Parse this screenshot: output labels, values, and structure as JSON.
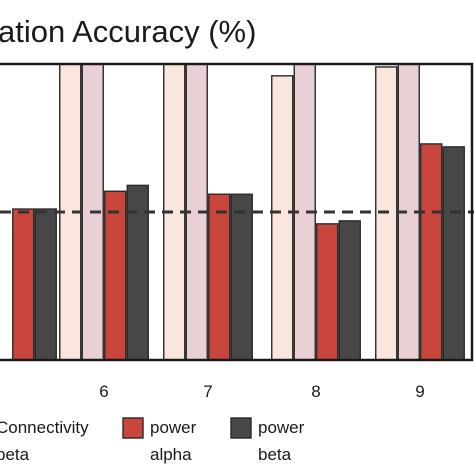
{
  "chart_data": {
    "type": "bar",
    "title": "ation Accuracy (%)",
    "categories": [
      "",
      "6",
      "7",
      "8",
      "9"
    ],
    "series": [
      {
        "name": "",
        "color": "#fbe6de",
        "values": [
          null,
          100,
          100,
          96,
          99
        ]
      },
      {
        "name": "",
        "color": "#e8d0d5",
        "values": [
          null,
          100,
          100,
          100,
          100
        ]
      },
      {
        "name": "power alpha",
        "color": "#c9463d",
        "values": [
          51,
          57,
          56,
          46,
          73
        ]
      },
      {
        "name": "power beta",
        "color": "#474747",
        "values": [
          51,
          59,
          56,
          47,
          72
        ]
      }
    ],
    "baseline": 50,
    "baseline_style": "dashed",
    "ylim": [
      0,
      100
    ],
    "grid": false,
    "legend_position": "bottom",
    "legend": [
      {
        "label_lines": [
          "Connectivity",
          "beta"
        ],
        "swatch": false
      },
      {
        "label_lines": [
          "power",
          "alpha"
        ],
        "color": "#c9463d"
      },
      {
        "label_lines": [
          "power",
          "beta"
        ],
        "color": "#474747"
      }
    ]
  }
}
